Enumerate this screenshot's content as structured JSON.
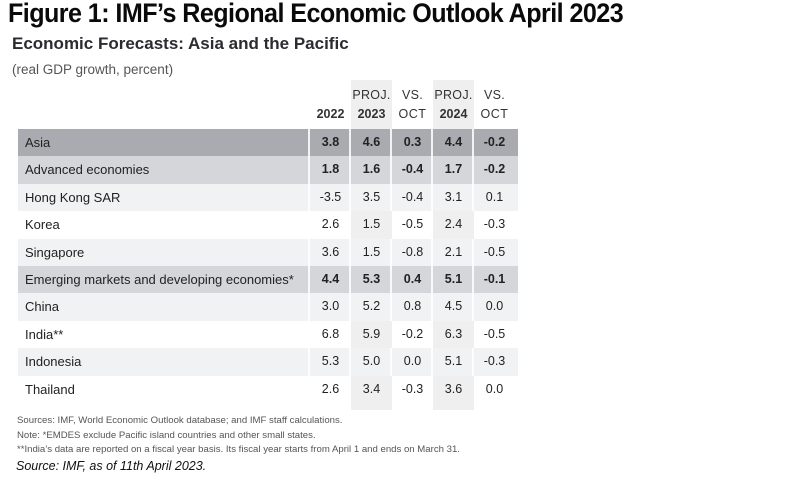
{
  "figure_title": "Figure 1: IMF’s Regional Economic  Outlook April 2023",
  "subtitle": "Economic Forecasts: Asia and the Pacific",
  "units": "(real GDP growth, percent)",
  "columns": [
    {
      "line1": "",
      "line2": "2022"
    },
    {
      "line1": "PROJ.",
      "line2": "2023"
    },
    {
      "line1": "VS.",
      "line2": "OCT"
    },
    {
      "line1": "PROJ.",
      "line2": "2024"
    },
    {
      "line1": "VS.",
      "line2": "OCT"
    }
  ],
  "rows": [
    {
      "label": "Asia",
      "values": [
        "3.8",
        "4.6",
        "0.3",
        "4.4",
        "-0.2"
      ]
    },
    {
      "label": "Advanced economies",
      "values": [
        "1.8",
        "1.6",
        "-0.4",
        "1.7",
        "-0.2"
      ]
    },
    {
      "label": "Hong Kong SAR",
      "values": [
        "-3.5",
        "3.5",
        "-0.4",
        "3.1",
        "0.1"
      ]
    },
    {
      "label": "Korea",
      "values": [
        "2.6",
        "1.5",
        "-0.5",
        "2.4",
        "-0.3"
      ]
    },
    {
      "label": "Singapore",
      "values": [
        "3.6",
        "1.5",
        "-0.8",
        "2.1",
        "-0.5"
      ]
    },
    {
      "label": "Emerging markets and developing economies*",
      "values": [
        "4.4",
        "5.3",
        "0.4",
        "5.1",
        "-0.1"
      ]
    },
    {
      "label": "China",
      "values": [
        "3.0",
        "5.2",
        "0.8",
        "4.5",
        "0.0"
      ]
    },
    {
      "label": "India**",
      "values": [
        "6.8",
        "5.9",
        "-0.2",
        "6.3",
        "-0.5"
      ]
    },
    {
      "label": "Indonesia",
      "values": [
        "5.3",
        "5.0",
        "0.0",
        "5.1",
        "-0.3"
      ]
    },
    {
      "label": "Thailand",
      "values": [
        "2.6",
        "3.4",
        "-0.3",
        "3.6",
        "0.0"
      ]
    }
  ],
  "notes": [
    "Sources: IMF, World Economic Outlook database; and IMF staff calculations.",
    "Note: *EMDES exclude Pacific island countries and other small states.",
    "**India’s data are reported on a fiscal year basis. Its fiscal year starts from April 1 and ends on March 31."
  ],
  "source": "Source: IMF, as of 11th April 2023.",
  "colors": {
    "asia_row": "#a9abb1",
    "group_row": "#d4d6da",
    "light_row": "#f1f2f3",
    "proj_band": "#efeff0"
  }
}
